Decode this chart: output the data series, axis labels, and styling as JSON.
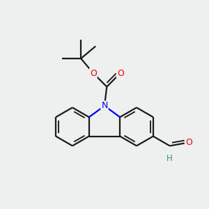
{
  "background_color": "#edf0ee",
  "bond_color": "#1a1a1a",
  "N_color": "#0000ee",
  "O_color": "#ee0000",
  "H_color": "#3a8a8a",
  "line_width": 1.6,
  "dbo": 0.012,
  "figsize": [
    3.0,
    3.0
  ],
  "dpi": 100,
  "xlim": [
    0.05,
    0.95
  ],
  "ylim": [
    0.05,
    0.95
  ]
}
